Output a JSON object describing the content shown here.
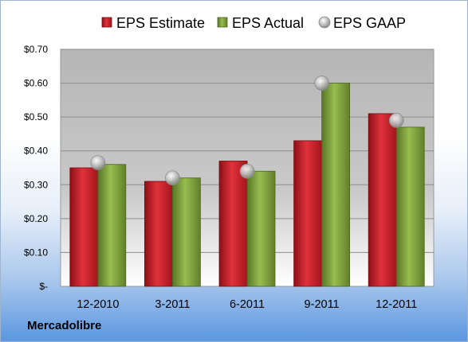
{
  "chart_data": {
    "type": "bar",
    "categories": [
      "12-2010",
      "3-2011",
      "6-2011",
      "9-2011",
      "12-2011"
    ],
    "series": [
      {
        "name": "EPS Estimate",
        "kind": "bar",
        "color": "#c8202a",
        "values": [
          0.35,
          0.31,
          0.37,
          0.43,
          0.51
        ]
      },
      {
        "name": "EPS Actual",
        "kind": "bar",
        "color": "#7fa33a",
        "values": [
          0.36,
          0.32,
          0.34,
          0.6,
          0.47
        ]
      },
      {
        "name": "EPS GAAP",
        "kind": "scatter",
        "color": "#a6a6a6",
        "values": [
          0.365,
          0.32,
          0.34,
          0.6,
          0.49
        ]
      }
    ],
    "ylim": [
      0,
      0.7
    ],
    "yticks": [
      {
        "value": 0.7,
        "label": "$0.70"
      },
      {
        "value": 0.6,
        "label": "$0.60"
      },
      {
        "value": 0.5,
        "label": "$0.50"
      },
      {
        "value": 0.4,
        "label": "$0.40"
      },
      {
        "value": 0.3,
        "label": "$0.30"
      },
      {
        "value": 0.2,
        "label": "$0.20"
      },
      {
        "value": 0.1,
        "label": "$0.10"
      },
      {
        "value": 0.0,
        "label": "$-"
      }
    ],
    "grid": true,
    "legend": "top-center",
    "title": "",
    "xlabel": "",
    "ylabel": ""
  },
  "footer": {
    "company": "Mercadolibre"
  }
}
